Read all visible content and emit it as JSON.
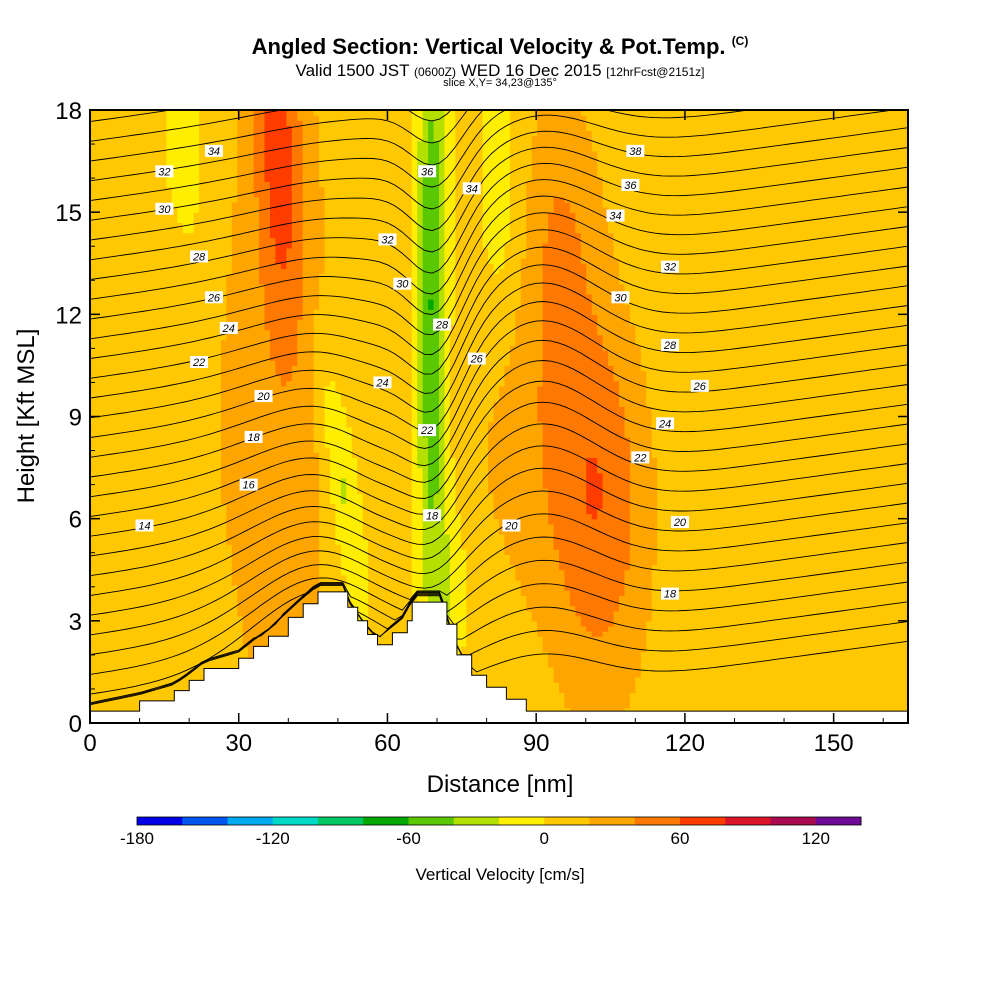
{
  "header": {
    "title_main": "Angled Section: Vertical Velocity & Pot.Temp.",
    "title_units": "(C)",
    "valid_a": "Valid 1500 JST",
    "valid_utc": "(0600Z)",
    "valid_b": "WED 16 Dec 2015",
    "fcst": "[12hrFcst@2151z]",
    "slice": "slice X,Y= 34,23@135°"
  },
  "chart_data": {
    "type": "heatmap",
    "xlabel": "Distance [nm]",
    "ylabel": "Height [Kft MSL]",
    "xlim": [
      0,
      165
    ],
    "ylim": [
      0,
      18
    ],
    "x_ticks": [
      0,
      30,
      60,
      90,
      120,
      150
    ],
    "y_ticks": [
      0,
      3,
      6,
      9,
      12,
      15,
      18
    ],
    "terrain_kft": [
      [
        0,
        0.35
      ],
      [
        10,
        0.65
      ],
      [
        17,
        0.95
      ],
      [
        20,
        1.25
      ],
      [
        23,
        1.6
      ],
      [
        30,
        1.9
      ],
      [
        33,
        2.25
      ],
      [
        36,
        2.55
      ],
      [
        40,
        3.1
      ],
      [
        43,
        3.5
      ],
      [
        46,
        3.85
      ],
      [
        51,
        3.85
      ],
      [
        52,
        3.4
      ],
      [
        54,
        3.0
      ],
      [
        56,
        2.6
      ],
      [
        58,
        2.3
      ],
      [
        61,
        2.65
      ],
      [
        64,
        3.0
      ],
      [
        65,
        3.55
      ],
      [
        71,
        3.55
      ],
      [
        72,
        2.9
      ],
      [
        74,
        2.0
      ],
      [
        77,
        1.4
      ],
      [
        80,
        1.05
      ],
      [
        84,
        0.7
      ],
      [
        88,
        0.35
      ],
      [
        165,
        0.35
      ]
    ],
    "theta_contour_labels": [
      {
        "value": "14",
        "x": 11,
        "y": 5.8
      },
      {
        "value": "16",
        "x": 32,
        "y": 7.0
      },
      {
        "value": "18",
        "x": 33,
        "y": 8.4
      },
      {
        "value": "20",
        "x": 35,
        "y": 9.6
      },
      {
        "value": "22",
        "x": 22,
        "y": 10.6
      },
      {
        "value": "24",
        "x": 28,
        "y": 11.6
      },
      {
        "value": "26",
        "x": 25,
        "y": 12.5
      },
      {
        "value": "28",
        "x": 22,
        "y": 13.7
      },
      {
        "value": "30",
        "x": 15,
        "y": 15.1
      },
      {
        "value": "32",
        "x": 15,
        "y": 16.2
      },
      {
        "value": "34",
        "x": 25,
        "y": 16.8
      },
      {
        "value": "32",
        "x": 60,
        "y": 14.2
      },
      {
        "value": "30",
        "x": 63,
        "y": 12.9
      },
      {
        "value": "28",
        "x": 71,
        "y": 11.7
      },
      {
        "value": "26",
        "x": 78,
        "y": 10.7
      },
      {
        "value": "24",
        "x": 59,
        "y": 10.0
      },
      {
        "value": "22",
        "x": 68,
        "y": 8.6
      },
      {
        "value": "18",
        "x": 69,
        "y": 6.1
      },
      {
        "value": "20",
        "x": 85,
        "y": 5.8
      },
      {
        "value": "36",
        "x": 68,
        "y": 16.2
      },
      {
        "value": "34",
        "x": 77,
        "y": 15.7
      },
      {
        "value": "38",
        "x": 110,
        "y": 16.8
      },
      {
        "value": "36",
        "x": 109,
        "y": 15.8
      },
      {
        "value": "34",
        "x": 106,
        "y": 14.9
      },
      {
        "value": "32",
        "x": 117,
        "y": 13.4
      },
      {
        "value": "30",
        "x": 107,
        "y": 12.5
      },
      {
        "value": "28",
        "x": 117,
        "y": 11.1
      },
      {
        "value": "26",
        "x": 123,
        "y": 9.9
      },
      {
        "value": "24",
        "x": 116,
        "y": 8.8
      },
      {
        "value": "22",
        "x": 111,
        "y": 7.8
      },
      {
        "value": "20",
        "x": 119,
        "y": 5.9
      },
      {
        "value": "18",
        "x": 117,
        "y": 3.8
      }
    ],
    "colorbar": {
      "label": "Vertical Velocity [cm/s]",
      "min": -180,
      "max": 140,
      "step": 20,
      "tick_labels": [
        -180,
        -120,
        -60,
        0,
        60,
        120
      ],
      "colors": [
        "#0000e6",
        "#0055f0",
        "#00aaf0",
        "#00d8c8",
        "#00c864",
        "#00a800",
        "#5ac800",
        "#b4e000",
        "#ffee00",
        "#ffc800",
        "#ffa500",
        "#ff7800",
        "#ff3c00",
        "#dc1428",
        "#aa0a50",
        "#6e0a96"
      ]
    }
  }
}
